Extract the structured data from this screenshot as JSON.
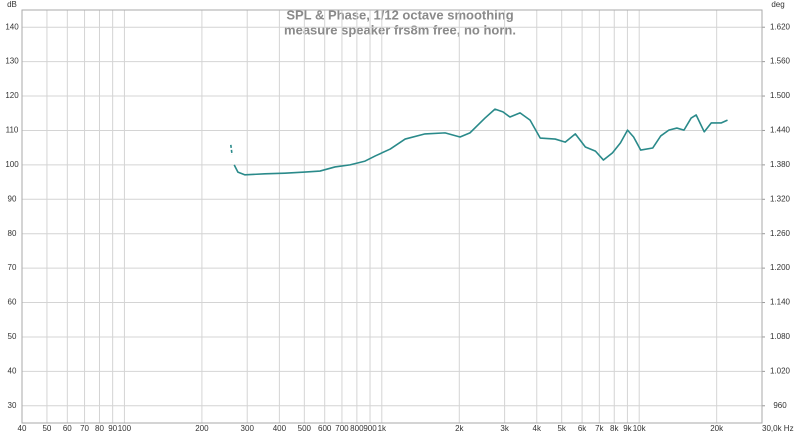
{
  "chart_data": {
    "type": "line",
    "title": "SPL & Phase, 1/12 octave smoothing",
    "subtitle": "measure speaker frs8m free, no horn.",
    "y_label": "dB",
    "y2_label": "deg",
    "log_x": true,
    "grid": true,
    "xlim": [
      40,
      30000
    ],
    "xticks": [
      40,
      50,
      60,
      70,
      80,
      90,
      100,
      200,
      300,
      400,
      500,
      600,
      700,
      800,
      900,
      {
        "value": 1000,
        "label": "1k"
      },
      {
        "value": 2000,
        "label": "2k"
      },
      {
        "value": 3000,
        "label": "3k"
      },
      {
        "value": 4000,
        "label": "4k"
      },
      {
        "value": 5000,
        "label": "5k"
      },
      {
        "value": 6000,
        "label": "6k"
      },
      {
        "value": 7000,
        "label": "7k"
      },
      {
        "value": 8000,
        "label": "8k"
      },
      {
        "value": 9000,
        "label": "9k"
      },
      {
        "value": 10000,
        "label": "10k"
      },
      {
        "value": 20000,
        "label": "20k"
      },
      {
        "value": 30000,
        "label": "30,0k Hz"
      }
    ],
    "ylim": [
      25,
      145
    ],
    "yticks": [
      30,
      40,
      50,
      60,
      70,
      80,
      90,
      100,
      110,
      120,
      130,
      140
    ],
    "y2lim": [
      930,
      1650
    ],
    "y2ticks": [
      {
        "value": 960,
        "label": "960"
      },
      {
        "value": 1020,
        "label": "1.020"
      },
      {
        "value": 1080,
        "label": "1.080"
      },
      {
        "value": 1140,
        "label": "1.140"
      },
      {
        "value": 1200,
        "label": "1.200"
      },
      {
        "value": 1260,
        "label": "1.260"
      },
      {
        "value": 1320,
        "label": "1.320"
      },
      {
        "value": 1380,
        "label": "1.380"
      },
      {
        "value": 1440,
        "label": "1.440"
      },
      {
        "value": 1500,
        "label": "1.500"
      },
      {
        "value": 1560,
        "label": "1.560"
      },
      {
        "value": 1620,
        "label": "1.620"
      }
    ],
    "series": [
      {
        "color": "#2a8a8a",
        "dashed": false,
        "x": [
          267,
          276,
          294,
          351,
          420,
          502,
          575,
          658,
          752,
          861,
          943,
          1078,
          1232,
          1472,
          1761,
          2013,
          2200,
          2517,
          2752,
          2956,
          3147,
          3444,
          3768,
          4124,
          4717,
          5161,
          5647,
          6178,
          6761,
          7263,
          7873,
          8456,
          9009,
          9512,
          10137,
          11283,
          12125,
          13034,
          14006,
          14929,
          15915,
          16648,
          17891,
          19063,
          20855,
          22038
        ],
        "values": [
          100.0,
          97.9,
          97.1,
          97.4,
          97.6,
          97.9,
          98.2,
          99.4,
          100.0,
          101.1,
          102.6,
          104.6,
          107.5,
          109.0,
          109.3,
          108.1,
          109.3,
          113.6,
          116.2,
          115.4,
          113.9,
          115.1,
          113.0,
          107.8,
          107.5,
          106.6,
          109.0,
          105.2,
          104.0,
          101.4,
          103.5,
          106.4,
          110.1,
          108.1,
          104.3,
          104.9,
          108.4,
          110.1,
          110.7,
          110.1,
          113.6,
          114.5,
          109.6,
          112.2,
          112.2,
          113.0
        ]
      },
      {
        "color": "#2a8a8a",
        "dashed": true,
        "x": [
          259,
          262
        ],
        "values": [
          105.8,
          102.9
        ]
      }
    ]
  }
}
